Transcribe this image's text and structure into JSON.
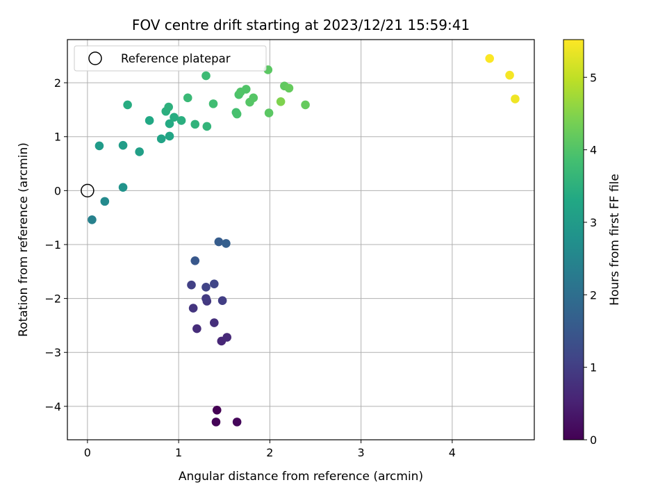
{
  "chart_data": {
    "type": "scatter",
    "title": "FOV centre drift starting at 2023/12/21 15:59:41",
    "xlabel": "Angular distance from reference (arcmin)",
    "ylabel": "Rotation from reference (arcmin)",
    "xlim": [
      -0.22,
      4.9
    ],
    "ylim": [
      -4.62,
      2.8
    ],
    "xticks": [
      0,
      1,
      2,
      3,
      4
    ],
    "yticks": [
      -4,
      -3,
      -2,
      -1,
      0,
      1,
      2
    ],
    "grid": true,
    "legend": {
      "position": "top-left",
      "entries": [
        "Reference platepar"
      ]
    },
    "reference_point": {
      "x": 0,
      "y": 0
    },
    "colorbar": {
      "label": "Hours from first FF file",
      "colormap": "viridis",
      "range": [
        0,
        5.52
      ],
      "ticks": [
        0,
        1,
        2,
        3,
        4,
        5
      ]
    },
    "points": [
      {
        "x": 1.42,
        "y": -4.07,
        "c": 0.0
      },
      {
        "x": 1.41,
        "y": -4.29,
        "c": 0.05
      },
      {
        "x": 1.64,
        "y": -4.29,
        "c": 0.1
      },
      {
        "x": 1.47,
        "y": -2.79,
        "c": 0.6
      },
      {
        "x": 1.53,
        "y": -2.72,
        "c": 0.65
      },
      {
        "x": 1.2,
        "y": -2.56,
        "c": 0.7
      },
      {
        "x": 1.39,
        "y": -2.45,
        "c": 0.75
      },
      {
        "x": 1.16,
        "y": -2.18,
        "c": 0.85
      },
      {
        "x": 1.31,
        "y": -2.05,
        "c": 0.9
      },
      {
        "x": 1.3,
        "y": -2.0,
        "c": 0.95
      },
      {
        "x": 1.48,
        "y": -2.04,
        "c": 1.0
      },
      {
        "x": 1.14,
        "y": -1.75,
        "c": 1.05
      },
      {
        "x": 1.3,
        "y": -1.79,
        "c": 1.1
      },
      {
        "x": 1.39,
        "y": -1.73,
        "c": 1.15
      },
      {
        "x": 1.18,
        "y": -1.3,
        "c": 1.5
      },
      {
        "x": 1.44,
        "y": -0.95,
        "c": 1.6
      },
      {
        "x": 1.52,
        "y": -0.98,
        "c": 1.65
      },
      {
        "x": 0.05,
        "y": -0.54,
        "c": 2.4
      },
      {
        "x": 0.19,
        "y": -0.2,
        "c": 2.6
      },
      {
        "x": 0.39,
        "y": 0.06,
        "c": 2.8
      },
      {
        "x": 0.13,
        "y": 0.83,
        "c": 3.0
      },
      {
        "x": 0.39,
        "y": 0.84,
        "c": 3.05
      },
      {
        "x": 0.57,
        "y": 0.72,
        "c": 3.1
      },
      {
        "x": 0.81,
        "y": 0.96,
        "c": 3.2
      },
      {
        "x": 0.9,
        "y": 1.01,
        "c": 3.25
      },
      {
        "x": 0.68,
        "y": 1.3,
        "c": 3.3
      },
      {
        "x": 0.9,
        "y": 1.24,
        "c": 3.35
      },
      {
        "x": 0.95,
        "y": 1.36,
        "c": 3.4
      },
      {
        "x": 1.03,
        "y": 1.3,
        "c": 3.45
      },
      {
        "x": 0.86,
        "y": 1.47,
        "c": 3.45
      },
      {
        "x": 0.89,
        "y": 1.55,
        "c": 3.5
      },
      {
        "x": 0.44,
        "y": 1.59,
        "c": 3.4
      },
      {
        "x": 1.18,
        "y": 1.23,
        "c": 3.55
      },
      {
        "x": 1.31,
        "y": 1.19,
        "c": 3.6
      },
      {
        "x": 1.1,
        "y": 1.72,
        "c": 3.7
      },
      {
        "x": 1.3,
        "y": 2.13,
        "c": 3.75
      },
      {
        "x": 1.38,
        "y": 1.61,
        "c": 3.8
      },
      {
        "x": 1.63,
        "y": 1.45,
        "c": 3.85
      },
      {
        "x": 1.64,
        "y": 1.42,
        "c": 3.9
      },
      {
        "x": 1.66,
        "y": 1.78,
        "c": 3.95
      },
      {
        "x": 1.68,
        "y": 1.83,
        "c": 4.0
      },
      {
        "x": 1.74,
        "y": 1.88,
        "c": 4.0
      },
      {
        "x": 1.78,
        "y": 1.64,
        "c": 4.05
      },
      {
        "x": 1.82,
        "y": 1.72,
        "c": 4.05
      },
      {
        "x": 1.98,
        "y": 2.24,
        "c": 4.1
      },
      {
        "x": 1.99,
        "y": 1.44,
        "c": 4.1
      },
      {
        "x": 2.16,
        "y": 1.94,
        "c": 4.15
      },
      {
        "x": 2.21,
        "y": 1.9,
        "c": 4.2
      },
      {
        "x": 2.12,
        "y": 1.65,
        "c": 4.45
      },
      {
        "x": 2.39,
        "y": 1.59,
        "c": 4.2
      },
      {
        "x": 4.41,
        "y": 2.45,
        "c": 5.5
      },
      {
        "x": 4.63,
        "y": 2.14,
        "c": 5.45
      },
      {
        "x": 4.69,
        "y": 1.7,
        "c": 5.4
      }
    ]
  }
}
